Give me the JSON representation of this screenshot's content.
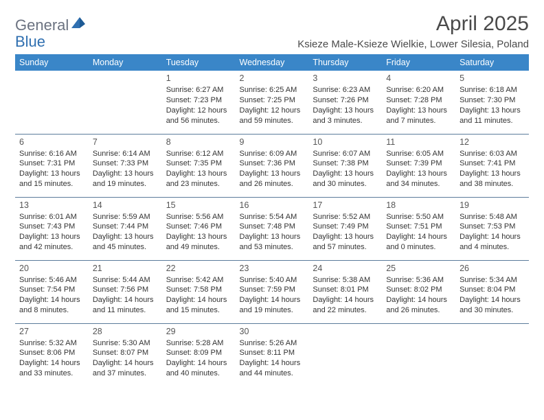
{
  "logo": {
    "part1": "General",
    "part2": "Blue"
  },
  "title": "April 2025",
  "location": "Ksieze Male-Ksieze Wielkie, Lower Silesia, Poland",
  "colors": {
    "header_bg": "#3a86c8",
    "header_fg": "#ffffff",
    "rule": "#5a7a9a",
    "logo_gray": "#6b7280",
    "logo_blue": "#2f6fb0",
    "text": "#333333",
    "title_color": "#4a4a4a"
  },
  "day_headers": [
    "Sunday",
    "Monday",
    "Tuesday",
    "Wednesday",
    "Thursday",
    "Friday",
    "Saturday"
  ],
  "weeks": [
    [
      null,
      null,
      {
        "n": "1",
        "sr": "6:27 AM",
        "ss": "7:23 PM",
        "dl": "12 hours and 56 minutes."
      },
      {
        "n": "2",
        "sr": "6:25 AM",
        "ss": "7:25 PM",
        "dl": "12 hours and 59 minutes."
      },
      {
        "n": "3",
        "sr": "6:23 AM",
        "ss": "7:26 PM",
        "dl": "13 hours and 3 minutes."
      },
      {
        "n": "4",
        "sr": "6:20 AM",
        "ss": "7:28 PM",
        "dl": "13 hours and 7 minutes."
      },
      {
        "n": "5",
        "sr": "6:18 AM",
        "ss": "7:30 PM",
        "dl": "13 hours and 11 minutes."
      }
    ],
    [
      {
        "n": "6",
        "sr": "6:16 AM",
        "ss": "7:31 PM",
        "dl": "13 hours and 15 minutes."
      },
      {
        "n": "7",
        "sr": "6:14 AM",
        "ss": "7:33 PM",
        "dl": "13 hours and 19 minutes."
      },
      {
        "n": "8",
        "sr": "6:12 AM",
        "ss": "7:35 PM",
        "dl": "13 hours and 23 minutes."
      },
      {
        "n": "9",
        "sr": "6:09 AM",
        "ss": "7:36 PM",
        "dl": "13 hours and 26 minutes."
      },
      {
        "n": "10",
        "sr": "6:07 AM",
        "ss": "7:38 PM",
        "dl": "13 hours and 30 minutes."
      },
      {
        "n": "11",
        "sr": "6:05 AM",
        "ss": "7:39 PM",
        "dl": "13 hours and 34 minutes."
      },
      {
        "n": "12",
        "sr": "6:03 AM",
        "ss": "7:41 PM",
        "dl": "13 hours and 38 minutes."
      }
    ],
    [
      {
        "n": "13",
        "sr": "6:01 AM",
        "ss": "7:43 PM",
        "dl": "13 hours and 42 minutes."
      },
      {
        "n": "14",
        "sr": "5:59 AM",
        "ss": "7:44 PM",
        "dl": "13 hours and 45 minutes."
      },
      {
        "n": "15",
        "sr": "5:56 AM",
        "ss": "7:46 PM",
        "dl": "13 hours and 49 minutes."
      },
      {
        "n": "16",
        "sr": "5:54 AM",
        "ss": "7:48 PM",
        "dl": "13 hours and 53 minutes."
      },
      {
        "n": "17",
        "sr": "5:52 AM",
        "ss": "7:49 PM",
        "dl": "13 hours and 57 minutes."
      },
      {
        "n": "18",
        "sr": "5:50 AM",
        "ss": "7:51 PM",
        "dl": "14 hours and 0 minutes."
      },
      {
        "n": "19",
        "sr": "5:48 AM",
        "ss": "7:53 PM",
        "dl": "14 hours and 4 minutes."
      }
    ],
    [
      {
        "n": "20",
        "sr": "5:46 AM",
        "ss": "7:54 PM",
        "dl": "14 hours and 8 minutes."
      },
      {
        "n": "21",
        "sr": "5:44 AM",
        "ss": "7:56 PM",
        "dl": "14 hours and 11 minutes."
      },
      {
        "n": "22",
        "sr": "5:42 AM",
        "ss": "7:58 PM",
        "dl": "14 hours and 15 minutes."
      },
      {
        "n": "23",
        "sr": "5:40 AM",
        "ss": "7:59 PM",
        "dl": "14 hours and 19 minutes."
      },
      {
        "n": "24",
        "sr": "5:38 AM",
        "ss": "8:01 PM",
        "dl": "14 hours and 22 minutes."
      },
      {
        "n": "25",
        "sr": "5:36 AM",
        "ss": "8:02 PM",
        "dl": "14 hours and 26 minutes."
      },
      {
        "n": "26",
        "sr": "5:34 AM",
        "ss": "8:04 PM",
        "dl": "14 hours and 30 minutes."
      }
    ],
    [
      {
        "n": "27",
        "sr": "5:32 AM",
        "ss": "8:06 PM",
        "dl": "14 hours and 33 minutes."
      },
      {
        "n": "28",
        "sr": "5:30 AM",
        "ss": "8:07 PM",
        "dl": "14 hours and 37 minutes."
      },
      {
        "n": "29",
        "sr": "5:28 AM",
        "ss": "8:09 PM",
        "dl": "14 hours and 40 minutes."
      },
      {
        "n": "30",
        "sr": "5:26 AM",
        "ss": "8:11 PM",
        "dl": "14 hours and 44 minutes."
      },
      null,
      null,
      null
    ]
  ],
  "labels": {
    "sunrise": "Sunrise:",
    "sunset": "Sunset:",
    "daylight": "Daylight:"
  }
}
